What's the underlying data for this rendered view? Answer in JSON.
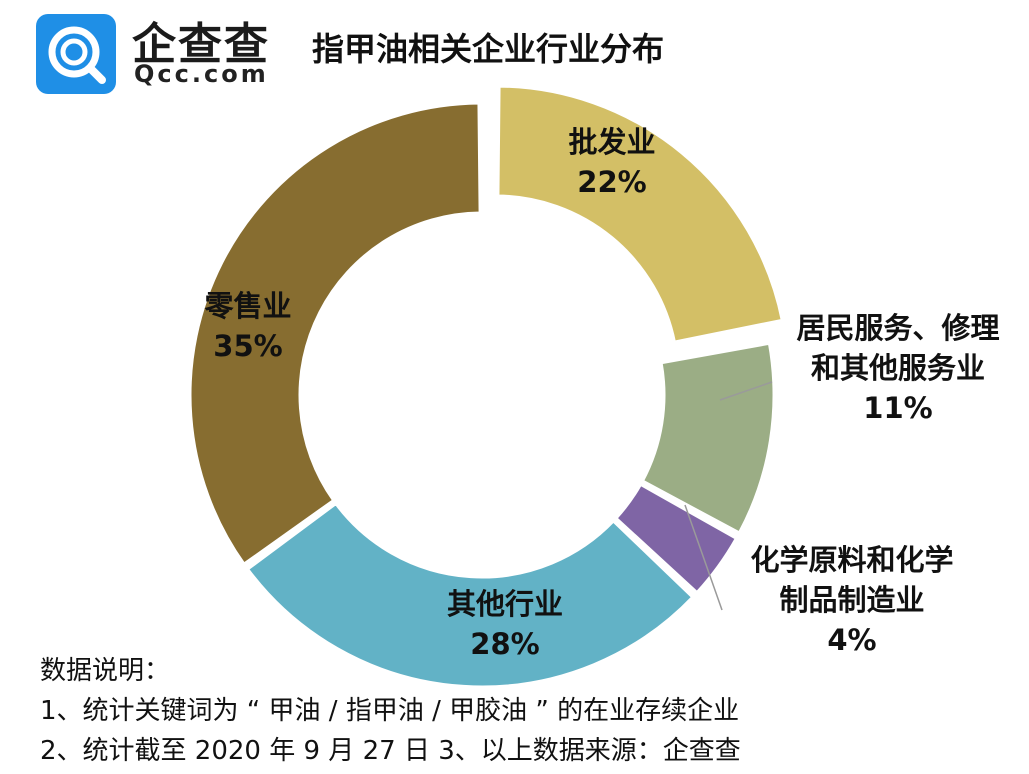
{
  "brand": {
    "name": "企查查",
    "domain": "Qcc.com",
    "color": "#1f8fe6"
  },
  "title": "指甲油相关企业行业分布",
  "notes": {
    "heading": "数据说明：",
    "line1": "1、统计关键词为 “ 甲油 / 指甲油 / 甲胶油 ” 的在业存续企业",
    "line2": "2、统计截至 2020 年 9 月 27 日  3、以上数据来源：企查查"
  },
  "chart_data": {
    "type": "pie",
    "style": "donut",
    "title": "指甲油相关企业行业分布",
    "slices": [
      {
        "label": [
          "批发业"
        ],
        "value": 22,
        "value_label": "22%",
        "color": "#d3bf66",
        "exploded": true
      },
      {
        "label": [
          "居民服务、修理",
          "和其他服务业"
        ],
        "value": 11,
        "value_label": "11%",
        "color": "#9bad85",
        "exploded": false
      },
      {
        "label": [
          "化学原料和化学",
          "制品制造业"
        ],
        "value": 4,
        "value_label": "4%",
        "color": "#7f65a5",
        "exploded": false
      },
      {
        "label": [
          "其他行业"
        ],
        "value": 28,
        "value_label": "28%",
        "color": "#62b2c6",
        "exploded": false
      },
      {
        "label": [
          "零售业"
        ],
        "value": 35,
        "value_label": "35%",
        "color": "#876d30",
        "exploded": false
      }
    ]
  }
}
